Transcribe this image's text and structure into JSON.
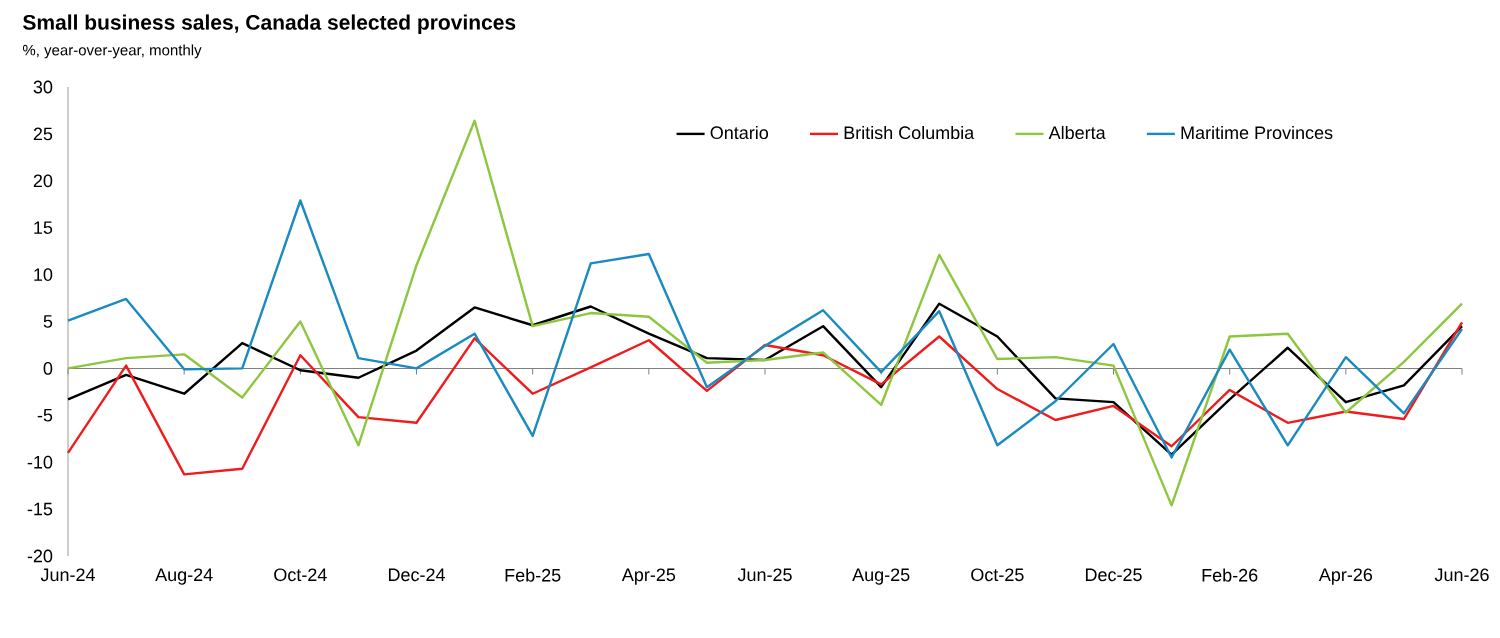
{
  "chart_data": {
    "type": "line",
    "title": "Small business sales, Canada selected provinces",
    "subtitle": "%, year-over-year, monthly",
    "categories": [
      "Jun-24",
      null,
      "Aug-24",
      null,
      "Oct-24",
      null,
      "Dec-24",
      null,
      "Feb-25",
      null,
      "Apr-25",
      null,
      "Jun-25",
      null,
      "Aug-25",
      null,
      "Oct-25",
      null,
      "Dec-25",
      null,
      "Feb-26",
      null,
      "Apr-26",
      null,
      "Jun-26"
    ],
    "series": [
      {
        "name": "Ontario",
        "color": "#000000",
        "values": [
          -3.3,
          -0.7,
          -2.7,
          2.7,
          -0.2,
          -1.0,
          1.9,
          6.5,
          4.6,
          6.6,
          3.7,
          1.1,
          0.9,
          4.5,
          -2.0,
          6.9,
          3.4,
          -3.2,
          -3.6,
          -9.2,
          -3.3,
          2.2,
          -3.6,
          -1.8,
          4.5
        ]
      },
      {
        "name": "British Columbia",
        "color": "#ee1c1c",
        "values": [
          -9.0,
          0.3,
          -11.3,
          -10.7,
          1.4,
          -5.2,
          -5.8,
          3.2,
          -2.7,
          0.1,
          3.0,
          -2.4,
          2.5,
          1.4,
          -1.7,
          3.4,
          -2.2,
          -5.5,
          -4.0,
          -8.3,
          -2.3,
          -5.8,
          -4.6,
          -5.4,
          4.9
        ]
      },
      {
        "name": "Alberta",
        "color": "#8dc63f",
        "values": [
          0.0,
          1.1,
          1.5,
          -3.1,
          5.0,
          -8.2,
          11.0,
          26.4,
          4.5,
          5.9,
          5.5,
          0.6,
          0.9,
          1.7,
          -3.9,
          12.1,
          1.0,
          1.2,
          0.3,
          -14.6,
          3.4,
          3.7,
          -4.7,
          0.7,
          6.9
        ]
      },
      {
        "name": "Maritime Provinces",
        "color": "#1a8ac0",
        "values": [
          5.1,
          7.4,
          -0.1,
          0.0,
          17.9,
          1.1,
          0.0,
          3.7,
          -7.2,
          11.2,
          12.2,
          -2.0,
          2.4,
          6.2,
          -0.4,
          6.1,
          -8.2,
          -3.5,
          2.6,
          -9.5,
          2.0,
          -8.2,
          1.2,
          -4.8,
          4.2
        ]
      }
    ],
    "ylim": [
      -20,
      30
    ],
    "yticks": [
      -20,
      -15,
      -10,
      -5,
      0,
      5,
      10,
      15,
      20,
      25,
      30
    ],
    "ref_lines": [
      {
        "axis": "y",
        "value": 0,
        "color": "#808080"
      }
    ],
    "grid": false,
    "legend": "top right",
    "marker": "none",
    "line_style": "solid"
  }
}
